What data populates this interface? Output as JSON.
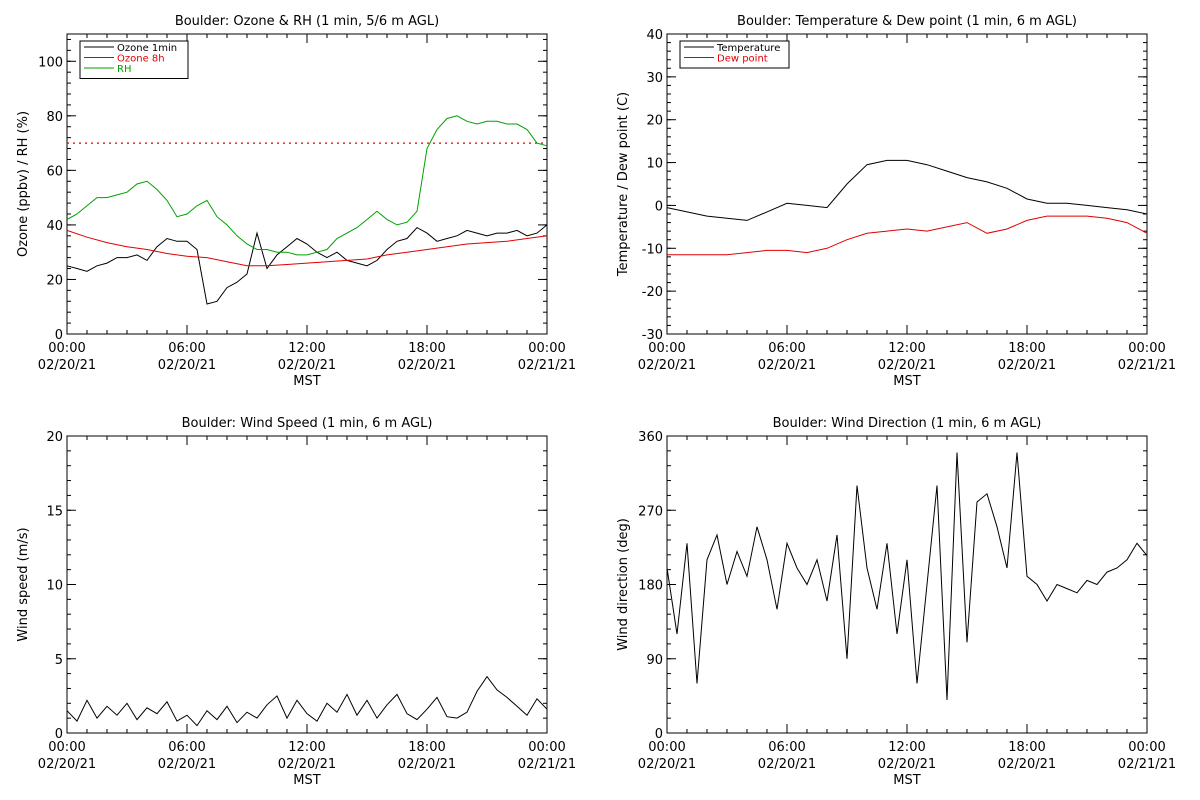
{
  "chart_data": [
    {
      "type": "line",
      "title": "Boulder: Ozone & RH (1 min, 5/6 m AGL)",
      "xlabel": "MST",
      "ylabel": "Ozone (ppbv) / RH (%)",
      "xlim": [
        0,
        24
      ],
      "ylim": [
        0,
        110
      ],
      "x_ticks": [
        {
          "time": "00:00",
          "date": "02/20/21"
        },
        {
          "time": "06:00",
          "date": "02/20/21"
        },
        {
          "time": "12:00",
          "date": "02/20/21"
        },
        {
          "time": "18:00",
          "date": "02/20/21"
        },
        {
          "time": "00:00",
          "date": "02/21/21"
        }
      ],
      "y_ticks": [
        0,
        20,
        40,
        60,
        80,
        100
      ],
      "legend_position": "top-left",
      "reference_line": {
        "y": 70,
        "color": "#e00000",
        "style": "dotted"
      },
      "series": [
        {
          "name": "Ozone 1min",
          "color": "#000000",
          "x": [
            0,
            0.5,
            1,
            1.5,
            2,
            2.5,
            3,
            3.5,
            4,
            4.5,
            5,
            5.5,
            6,
            6.5,
            7,
            7.5,
            8,
            8.5,
            9,
            9.5,
            10,
            10.5,
            11,
            11.5,
            12,
            12.5,
            13,
            13.5,
            14,
            14.5,
            15,
            15.5,
            16,
            16.5,
            17,
            17.5,
            18,
            18.5,
            19,
            19.5,
            20,
            20.5,
            21,
            21.5,
            22,
            22.5,
            23,
            23.5,
            24
          ],
          "values": [
            25,
            24,
            23,
            25,
            26,
            28,
            28,
            29,
            27,
            32,
            35,
            34,
            34,
            31,
            11,
            12,
            17,
            19,
            22,
            37,
            24,
            29,
            32,
            35,
            33,
            30,
            28,
            30,
            27,
            26,
            25,
            27,
            31,
            34,
            35,
            39,
            37,
            34,
            35,
            36,
            38,
            37,
            36,
            37,
            37,
            38,
            36,
            37,
            40
          ]
        },
        {
          "name": "Ozone 8h",
          "color": "#e00000",
          "x": [
            0,
            1,
            2,
            3,
            4,
            5,
            6,
            7,
            8,
            9,
            10,
            11,
            12,
            13,
            14,
            15,
            16,
            17,
            18,
            19,
            20,
            21,
            22,
            23,
            24
          ],
          "values": [
            38,
            35.5,
            33.5,
            32,
            31,
            29.5,
            28.5,
            28,
            26.5,
            25,
            25,
            25.5,
            26,
            26.5,
            27,
            27.5,
            29,
            30,
            31,
            32,
            33,
            33.5,
            34,
            35,
            36
          ]
        },
        {
          "name": "RH",
          "color": "#00a000",
          "x": [
            0,
            0.5,
            1,
            1.5,
            2,
            2.5,
            3,
            3.5,
            4,
            4.5,
            5,
            5.5,
            6,
            6.5,
            7,
            7.5,
            8,
            8.5,
            9,
            9.5,
            10,
            10.5,
            11,
            11.5,
            12,
            12.5,
            13,
            13.5,
            14,
            14.5,
            15,
            15.5,
            16,
            16.5,
            17,
            17.5,
            18,
            18.5,
            19,
            19.5,
            20,
            20.5,
            21,
            21.5,
            22,
            22.5,
            23,
            23.5,
            24
          ],
          "values": [
            42,
            44,
            47,
            50,
            50,
            51,
            52,
            55,
            56,
            53,
            49,
            43,
            44,
            47,
            49,
            43,
            40,
            36,
            33,
            31,
            31,
            30,
            30,
            29,
            29,
            30,
            31,
            35,
            37,
            39,
            42,
            45,
            42,
            40,
            41,
            45,
            68,
            75,
            79,
            80,
            78,
            77,
            78,
            78,
            77,
            77,
            75,
            70,
            69
          ]
        }
      ]
    },
    {
      "type": "line",
      "title": "Boulder: Temperature & Dew point (1 min, 6 m AGL)",
      "xlabel": "MST",
      "ylabel": "Temperature / Dew point (C)",
      "xlim": [
        0,
        24
      ],
      "ylim": [
        -30,
        40
      ],
      "x_ticks": [
        {
          "time": "00:00",
          "date": "02/20/21"
        },
        {
          "time": "06:00",
          "date": "02/20/21"
        },
        {
          "time": "12:00",
          "date": "02/20/21"
        },
        {
          "time": "18:00",
          "date": "02/20/21"
        },
        {
          "time": "00:00",
          "date": "02/21/21"
        }
      ],
      "y_ticks": [
        -30,
        -20,
        -10,
        0,
        10,
        20,
        30,
        40
      ],
      "legend_position": "top-left",
      "series": [
        {
          "name": "Temperature",
          "color": "#000000",
          "x": [
            0,
            1,
            2,
            3,
            4,
            5,
            6,
            7,
            8,
            9,
            10,
            11,
            12,
            13,
            14,
            15,
            16,
            17,
            18,
            19,
            20,
            21,
            22,
            23,
            24
          ],
          "values": [
            -0.5,
            -1.5,
            -2.5,
            -3,
            -3.5,
            -1.5,
            0.5,
            0,
            -0.5,
            5,
            9.5,
            10.5,
            10.5,
            9.5,
            8,
            6.5,
            5.5,
            4,
            1.5,
            0.5,
            0.5,
            0,
            -0.5,
            -1,
            -2
          ]
        },
        {
          "name": "Dew point",
          "color": "#e00000",
          "x": [
            0,
            1,
            2,
            3,
            4,
            5,
            6,
            7,
            8,
            9,
            10,
            11,
            12,
            13,
            14,
            15,
            16,
            17,
            18,
            19,
            20,
            21,
            22,
            23,
            24
          ],
          "values": [
            -11.5,
            -11.5,
            -11.5,
            -11.5,
            -11,
            -10.5,
            -10.5,
            -11,
            -10,
            -8,
            -6.5,
            -6,
            -5.5,
            -6,
            -5,
            -4,
            -6.5,
            -5.5,
            -3.5,
            -2.5,
            -2.5,
            -2.5,
            -3,
            -4,
            -6.5
          ]
        }
      ]
    },
    {
      "type": "line",
      "title": "Boulder: Wind Speed (1 min, 6 m AGL)",
      "xlabel": "MST",
      "ylabel": "Wind speed (m/s)",
      "xlim": [
        0,
        24
      ],
      "ylim": [
        0,
        20
      ],
      "x_ticks": [
        {
          "time": "00:00",
          "date": "02/20/21"
        },
        {
          "time": "06:00",
          "date": "02/20/21"
        },
        {
          "time": "12:00",
          "date": "02/20/21"
        },
        {
          "time": "18:00",
          "date": "02/20/21"
        },
        {
          "time": "00:00",
          "date": "02/21/21"
        }
      ],
      "y_ticks": [
        0,
        5,
        10,
        15,
        20
      ],
      "series": [
        {
          "name": "",
          "color": "#000000",
          "x": [
            0,
            0.5,
            1,
            1.5,
            2,
            2.5,
            3,
            3.5,
            4,
            4.5,
            5,
            5.5,
            6,
            6.5,
            7,
            7.5,
            8,
            8.5,
            9,
            9.5,
            10,
            10.5,
            11,
            11.5,
            12,
            12.5,
            13,
            13.5,
            14,
            14.5,
            15,
            15.5,
            16,
            16.5,
            17,
            17.5,
            18,
            18.5,
            19,
            19.5,
            20,
            20.5,
            21,
            21.5,
            22,
            22.5,
            23,
            23.5,
            24
          ],
          "values": [
            1.5,
            0.8,
            2.2,
            1.0,
            1.8,
            1.2,
            2.0,
            0.9,
            1.7,
            1.3,
            2.1,
            0.8,
            1.2,
            0.5,
            1.5,
            0.9,
            1.8,
            0.7,
            1.4,
            1.0,
            1.9,
            2.5,
            1.0,
            2.2,
            1.3,
            0.8,
            2.0,
            1.4,
            2.6,
            1.2,
            2.2,
            1.0,
            1.9,
            2.6,
            1.3,
            0.9,
            1.6,
            2.4,
            1.1,
            1.0,
            1.4,
            2.8,
            3.8,
            2.9,
            2.4,
            1.8,
            1.2,
            2.3,
            1.6
          ]
        }
      ]
    },
    {
      "type": "line",
      "title": "Boulder: Wind Direction (1 min, 6 m AGL)",
      "xlabel": "MST",
      "ylabel": "Wind direction (deg)",
      "xlim": [
        0,
        24
      ],
      "ylim": [
        0,
        360
      ],
      "x_ticks": [
        {
          "time": "00:00",
          "date": "02/20/21"
        },
        {
          "time": "06:00",
          "date": "02/20/21"
        },
        {
          "time": "12:00",
          "date": "02/20/21"
        },
        {
          "time": "18:00",
          "date": "02/20/21"
        },
        {
          "time": "00:00",
          "date": "02/21/21"
        }
      ],
      "y_ticks": [
        0,
        90,
        180,
        270,
        360
      ],
      "series": [
        {
          "name": "",
          "color": "#000000",
          "x": [
            0,
            0.5,
            1,
            1.5,
            2,
            2.5,
            3,
            3.5,
            4,
            4.5,
            5,
            5.5,
            6,
            6.5,
            7,
            7.5,
            8,
            8.5,
            9,
            9.5,
            10,
            10.5,
            11,
            11.5,
            12,
            12.5,
            13,
            13.5,
            14,
            14.5,
            15,
            15.5,
            16,
            16.5,
            17,
            17.5,
            18,
            18.5,
            19,
            19.5,
            20,
            20.5,
            21,
            21.5,
            22,
            22.5,
            23,
            23.5,
            24
          ],
          "values": [
            200,
            120,
            230,
            60,
            210,
            240,
            180,
            220,
            190,
            250,
            210,
            150,
            230,
            200,
            180,
            210,
            160,
            240,
            90,
            300,
            200,
            150,
            230,
            120,
            210,
            60,
            180,
            300,
            40,
            340,
            110,
            280,
            290,
            250,
            200,
            340,
            190,
            180,
            160,
            180,
            175,
            170,
            185,
            180,
            195,
            200,
            210,
            230,
            215
          ]
        }
      ]
    }
  ]
}
